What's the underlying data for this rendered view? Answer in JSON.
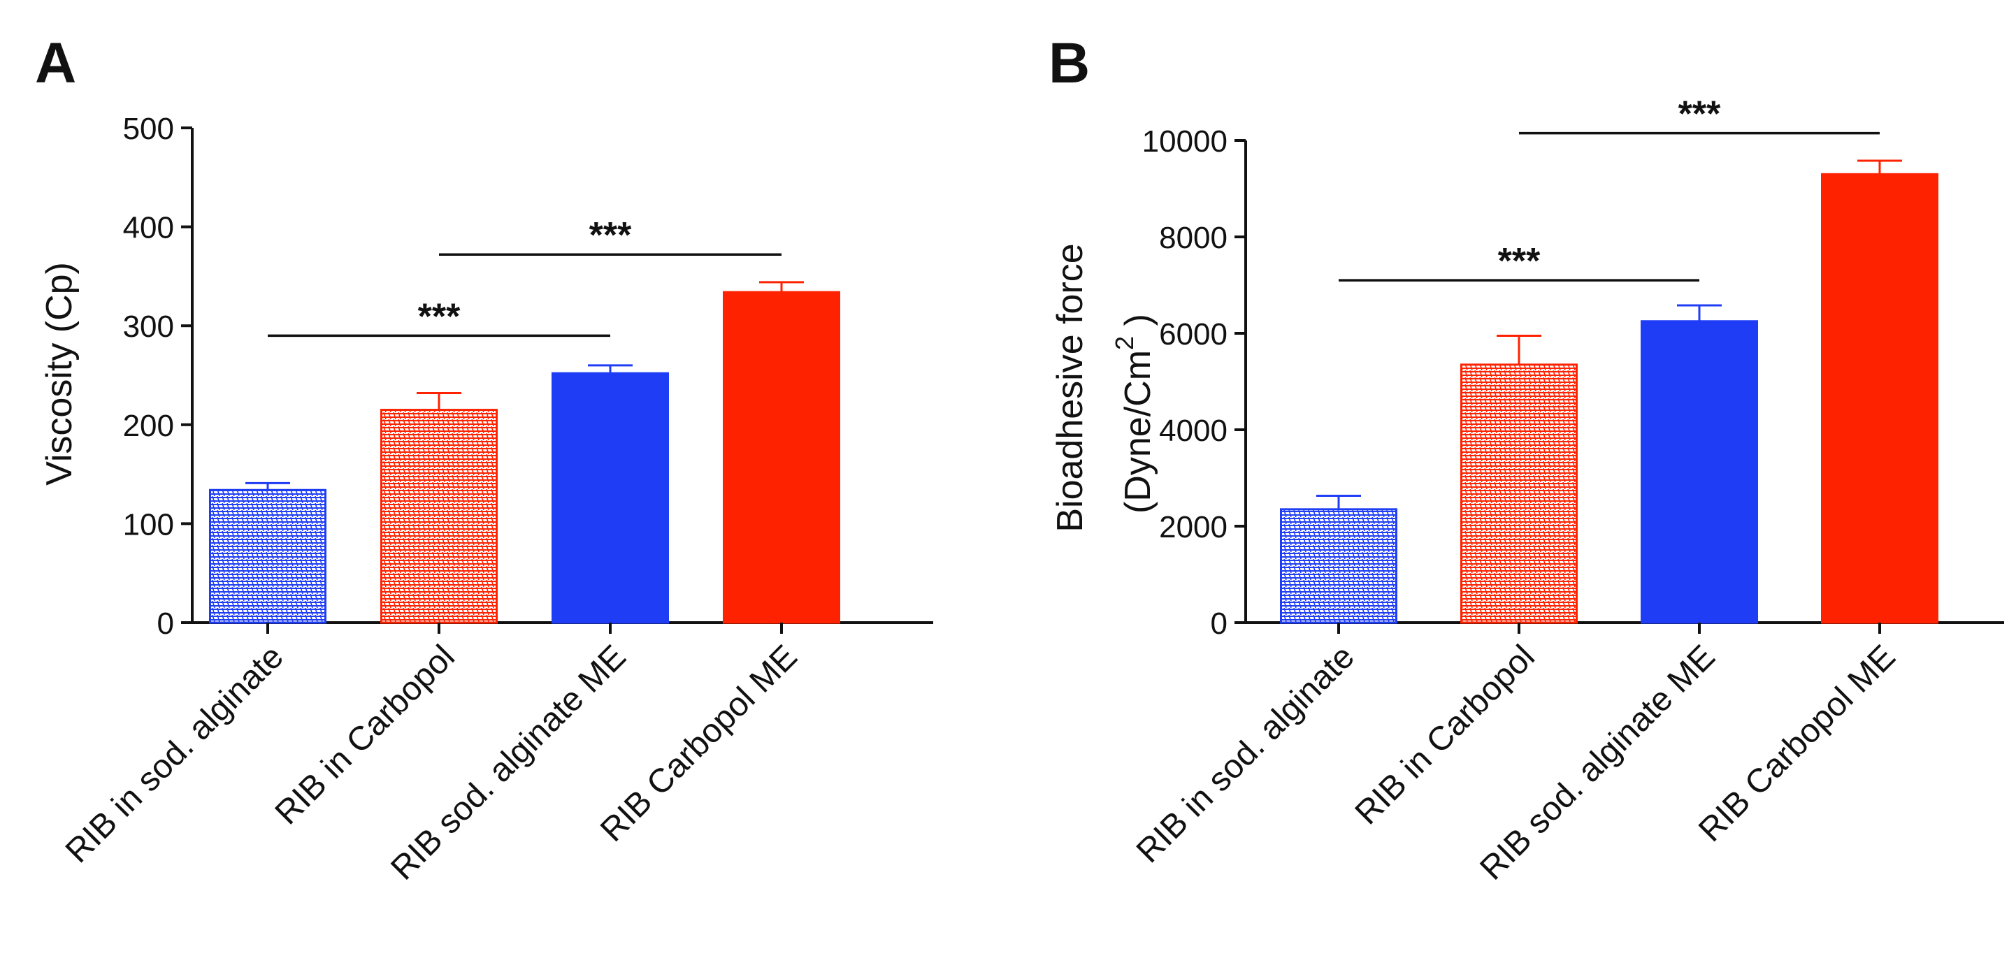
{
  "colors": {
    "blue": "#1f3df5",
    "red": "#ff2200",
    "axis": "#111111"
  },
  "chart_data": [
    {
      "type": "bar",
      "panel_label": "A",
      "title": "",
      "xlabel": "",
      "ylabel": "Viscosity (Cp)",
      "ylim": [
        0,
        500
      ],
      "yticks": [
        0,
        100,
        200,
        300,
        400,
        500
      ],
      "categories": [
        "RIB in sod. alginate",
        "RIB in Carbopol",
        "RIB sod. alginate ME",
        "RIB Carbopol ME"
      ],
      "values": [
        134,
        215,
        252,
        334
      ],
      "errors": [
        7,
        17,
        8,
        10
      ],
      "bar_styles": [
        "blue-hatched",
        "red-hatched",
        "blue-solid",
        "red-solid"
      ],
      "significance": [
        {
          "from": 0,
          "to": 2,
          "label": "***",
          "y": 290
        },
        {
          "from": 1,
          "to": 3,
          "label": "***",
          "y": 372
        }
      ]
    },
    {
      "type": "bar",
      "panel_label": "B",
      "title": "",
      "xlabel": "",
      "ylabel": "Bioadhesive force",
      "ylabel_line2": "(Dyne/Cm",
      "ylabel_sup": "2",
      "ylabel_end": " )",
      "ylim": [
        0,
        10000
      ],
      "yticks": [
        0,
        2000,
        4000,
        6000,
        8000,
        10000
      ],
      "categories": [
        "RIB in sod. alginate",
        "RIB in Carbopol",
        "RIB sod. alginate ME",
        "RIB Carbopol ME"
      ],
      "values": [
        2350,
        5350,
        6250,
        9300
      ],
      "errors": [
        280,
        600,
        330,
        280
      ],
      "bar_styles": [
        "blue-hatched",
        "red-hatched",
        "blue-solid",
        "red-solid"
      ],
      "significance": [
        {
          "from": 0,
          "to": 2,
          "label": "***",
          "y": 7100
        },
        {
          "from": 1,
          "to": 3,
          "label": "***",
          "y": 10150
        }
      ]
    }
  ]
}
